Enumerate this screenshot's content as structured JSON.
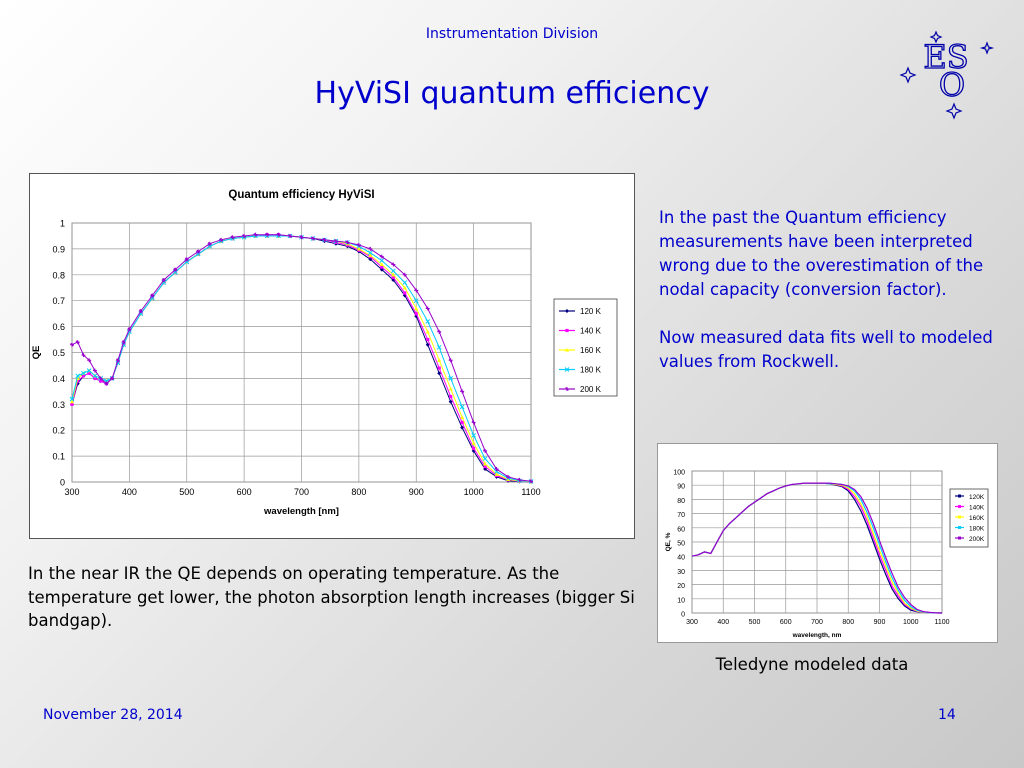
{
  "header": {
    "division": "Instrumentation Division",
    "title": "HyViSI quantum efficiency"
  },
  "logo": {
    "text_top": "ES",
    "text_bottom": "O"
  },
  "right_text": {
    "paragraph1": "In the past the Quantum efficiency measurements have been interpreted wrong due to the overestimation of the nodal capacity (conversion factor).",
    "paragraph2": "Now measured data fits well to modeled values from Rockwell."
  },
  "left_text": "In the near IR the QE depends on operating temperature. As the temperature get lower, the photon absorption length increases (bigger Si bandgap).",
  "teledyne_caption": "Teledyne  modeled data",
  "footer": {
    "date": "November 28, 2014",
    "page": "14"
  },
  "chart_data": [
    {
      "type": "line",
      "title": "Quantum efficiency HyViSI",
      "xlabel": "wavelength [nm]",
      "ylabel": "QE",
      "xlim": [
        300,
        1100
      ],
      "ylim": [
        0,
        1
      ],
      "xticks": [
        300,
        400,
        500,
        600,
        700,
        800,
        900,
        1000,
        1100
      ],
      "yticks": [
        0,
        0.1,
        0.2,
        0.3,
        0.4,
        0.5,
        0.6,
        0.7,
        0.8,
        0.9,
        1
      ],
      "grid": true,
      "legend": "right",
      "x": [
        300,
        310,
        320,
        330,
        340,
        350,
        360,
        370,
        380,
        390,
        400,
        420,
        440,
        460,
        480,
        500,
        520,
        540,
        560,
        580,
        600,
        620,
        640,
        660,
        680,
        700,
        720,
        740,
        760,
        780,
        800,
        820,
        840,
        860,
        880,
        900,
        920,
        940,
        960,
        980,
        1000,
        1020,
        1040,
        1060,
        1080,
        1100
      ],
      "series": [
        {
          "name": "120 K",
          "color": "#000080",
          "marker": "diamond",
          "values": [
            0.3,
            0.38,
            0.41,
            0.42,
            0.4,
            0.39,
            0.38,
            0.4,
            0.46,
            0.53,
            0.58,
            0.65,
            0.71,
            0.77,
            0.81,
            0.85,
            0.88,
            0.91,
            0.93,
            0.94,
            0.945,
            0.95,
            0.95,
            0.95,
            0.95,
            0.945,
            0.94,
            0.93,
            0.92,
            0.91,
            0.89,
            0.86,
            0.82,
            0.78,
            0.72,
            0.64,
            0.53,
            0.42,
            0.31,
            0.21,
            0.12,
            0.05,
            0.02,
            0.005,
            0.002,
            0.001
          ]
        },
        {
          "name": "140 K",
          "color": "#ff00ff",
          "marker": "square",
          "values": [
            0.3,
            0.39,
            0.41,
            0.42,
            0.4,
            0.39,
            0.38,
            0.4,
            0.46,
            0.53,
            0.58,
            0.65,
            0.71,
            0.77,
            0.81,
            0.85,
            0.88,
            0.91,
            0.93,
            0.94,
            0.945,
            0.95,
            0.955,
            0.955,
            0.95,
            0.945,
            0.94,
            0.935,
            0.925,
            0.915,
            0.895,
            0.87,
            0.83,
            0.79,
            0.73,
            0.65,
            0.55,
            0.44,
            0.33,
            0.23,
            0.13,
            0.06,
            0.025,
            0.008,
            0.003,
            0.001
          ]
        },
        {
          "name": "160 K",
          "color": "#ffff00",
          "marker": "triangle",
          "values": [
            0.31,
            0.4,
            0.42,
            0.43,
            0.41,
            0.4,
            0.39,
            0.4,
            0.46,
            0.53,
            0.58,
            0.65,
            0.71,
            0.77,
            0.81,
            0.85,
            0.88,
            0.91,
            0.93,
            0.94,
            0.945,
            0.95,
            0.95,
            0.95,
            0.95,
            0.945,
            0.94,
            0.935,
            0.93,
            0.92,
            0.9,
            0.875,
            0.84,
            0.8,
            0.75,
            0.67,
            0.58,
            0.47,
            0.36,
            0.25,
            0.15,
            0.07,
            0.03,
            0.01,
            0.004,
            0.001
          ]
        },
        {
          "name": "180 K",
          "color": "#00ccff",
          "marker": "x",
          "values": [
            0.32,
            0.41,
            0.42,
            0.43,
            0.41,
            0.4,
            0.39,
            0.4,
            0.46,
            0.53,
            0.58,
            0.65,
            0.71,
            0.77,
            0.81,
            0.85,
            0.88,
            0.91,
            0.93,
            0.94,
            0.945,
            0.95,
            0.95,
            0.95,
            0.95,
            0.945,
            0.94,
            0.935,
            0.93,
            0.925,
            0.91,
            0.885,
            0.855,
            0.815,
            0.77,
            0.7,
            0.62,
            0.52,
            0.4,
            0.29,
            0.18,
            0.09,
            0.04,
            0.015,
            0.005,
            0.002
          ]
        },
        {
          "name": "200 K",
          "color": "#9900cc",
          "marker": "star",
          "values": [
            0.53,
            0.54,
            0.49,
            0.47,
            0.43,
            0.4,
            0.38,
            0.4,
            0.47,
            0.54,
            0.59,
            0.66,
            0.72,
            0.78,
            0.82,
            0.86,
            0.89,
            0.92,
            0.935,
            0.945,
            0.95,
            0.955,
            0.955,
            0.955,
            0.95,
            0.945,
            0.94,
            0.935,
            0.93,
            0.925,
            0.915,
            0.9,
            0.87,
            0.84,
            0.8,
            0.74,
            0.67,
            0.58,
            0.47,
            0.35,
            0.23,
            0.12,
            0.05,
            0.02,
            0.008,
            0.003
          ]
        }
      ]
    },
    {
      "type": "line",
      "title": "",
      "xlabel": "wavelength, nm",
      "ylabel": "QE, %",
      "xlim": [
        300,
        1100
      ],
      "ylim": [
        0,
        100
      ],
      "xticks": [
        300,
        400,
        500,
        600,
        700,
        800,
        900,
        1000,
        1100
      ],
      "yticks": [
        0,
        10,
        20,
        30,
        40,
        50,
        60,
        70,
        80,
        90,
        100
      ],
      "grid": true,
      "legend": "right",
      "x": [
        300,
        320,
        340,
        360,
        380,
        400,
        420,
        440,
        460,
        480,
        500,
        520,
        540,
        560,
        580,
        600,
        620,
        640,
        660,
        680,
        700,
        720,
        740,
        760,
        780,
        800,
        820,
        840,
        860,
        880,
        900,
        920,
        940,
        960,
        980,
        1000,
        1020,
        1040,
        1060,
        1080,
        1100
      ],
      "series": [
        {
          "name": "120K",
          "color": "#000080",
          "values": [
            40,
            41,
            43,
            42,
            50,
            58,
            63,
            67,
            71,
            75,
            78,
            81,
            84,
            86,
            88,
            89.5,
            90.5,
            91,
            91.5,
            91.5,
            91.5,
            91.5,
            91,
            90,
            89,
            86,
            80,
            72,
            62,
            50,
            38,
            27,
            17,
            10,
            5,
            2,
            1,
            0.5,
            0.2,
            0.1,
            0
          ]
        },
        {
          "name": "140K",
          "color": "#ff00ff",
          "values": [
            40,
            41,
            43,
            42,
            50,
            58,
            63,
            67,
            71,
            75,
            78,
            81,
            84,
            86,
            88,
            89.5,
            90.5,
            91,
            91.5,
            91.5,
            91.5,
            91.5,
            91,
            90.5,
            89.5,
            87,
            82,
            75,
            65,
            53,
            41,
            30,
            19,
            12,
            6,
            3,
            1.2,
            0.5,
            0.2,
            0.1,
            0
          ]
        },
        {
          "name": "160K",
          "color": "#ffff00",
          "values": [
            40,
            41,
            43,
            42,
            50,
            58,
            63,
            67,
            71,
            75,
            78,
            81,
            84,
            86,
            88,
            89.5,
            90.5,
            91,
            91.5,
            91.5,
            91.5,
            91.5,
            91,
            90.5,
            90,
            88,
            84,
            77,
            68,
            56,
            44,
            33,
            22,
            14,
            7,
            3.5,
            1.5,
            0.6,
            0.3,
            0.1,
            0
          ]
        },
        {
          "name": "180K",
          "color": "#00ccff",
          "values": [
            40,
            41,
            43,
            42,
            50,
            58,
            63,
            67,
            71,
            75,
            78,
            81,
            84,
            86,
            88,
            89.5,
            90.5,
            91,
            91.5,
            91.5,
            91.5,
            91.5,
            91,
            91,
            90.5,
            89,
            86,
            80,
            71,
            60,
            48,
            36,
            25,
            16,
            9,
            4.5,
            2,
            0.8,
            0.3,
            0.1,
            0
          ]
        },
        {
          "name": "200K",
          "color": "#9900cc",
          "values": [
            40,
            41,
            43,
            42,
            50,
            58,
            63,
            67,
            71,
            75,
            78,
            81,
            84,
            86,
            88,
            89.5,
            90.5,
            91,
            91.5,
            91.5,
            91.5,
            91.5,
            91.5,
            91,
            90.5,
            89.5,
            87,
            82,
            74,
            63,
            51,
            39,
            28,
            18,
            11,
            6,
            2.5,
            1,
            0.4,
            0.1,
            0
          ]
        }
      ]
    }
  ]
}
